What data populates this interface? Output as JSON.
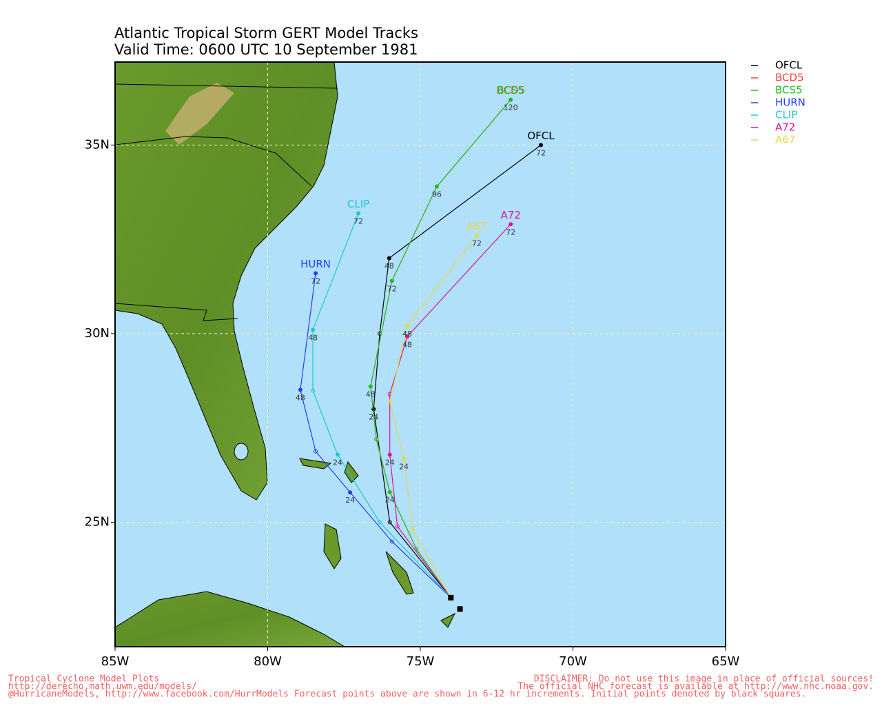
{
  "chart_data": {
    "type": "track",
    "title": "Atlantic Tropical Storm GERT Model Tracks",
    "subtitle": "Valid Time: 0600 UTC 10 September 1981",
    "xlim": [
      -85,
      -65
    ],
    "ylim": [
      21.7,
      37.2
    ],
    "xticks": [
      {
        "value": -85,
        "label": "85W"
      },
      {
        "value": -80,
        "label": "80W"
      },
      {
        "value": -75,
        "label": "75W"
      },
      {
        "value": -70,
        "label": "70W"
      },
      {
        "value": -65,
        "label": "65W"
      }
    ],
    "yticks": [
      {
        "value": 25,
        "label": "25N"
      },
      {
        "value": 30,
        "label": "30N"
      },
      {
        "value": 35,
        "label": "35N"
      }
    ],
    "grid": true,
    "initial_points": {
      "lon": [
        -73.7,
        -74.0
      ],
      "lat": [
        22.7,
        23.0
      ]
    },
    "series": [
      {
        "name": "OFCL",
        "color": "#000000",
        "lon": [
          -74.0,
          -76.0,
          -76.53,
          -76.33,
          -76.02,
          -71.05
        ],
        "lat": [
          23.0,
          25.0,
          28.0,
          30.0,
          32.0,
          35.0
        ],
        "hours": [
          null,
          null,
          24,
          null,
          48,
          72
        ]
      },
      {
        "name": "BCD5",
        "color": "#ff4040",
        "lon": [
          -74.0,
          -75.13,
          -76.0,
          -76.44,
          -76.63,
          -75.93,
          -74.46,
          -72.04
        ],
        "lat": [
          23.0,
          24.29,
          25.8,
          27.2,
          28.6,
          31.4,
          33.9,
          36.2
        ],
        "hours": [
          null,
          null,
          null,
          null,
          null,
          null,
          null,
          null
        ]
      },
      {
        "name": "BCS5",
        "color": "#20c020",
        "lon": [
          -74.0,
          -75.13,
          -76.0,
          -76.44,
          -76.63,
          -75.93,
          -74.46,
          -72.04
        ],
        "lat": [
          23.0,
          24.29,
          25.8,
          27.2,
          28.6,
          31.4,
          33.9,
          36.2
        ],
        "hours": [
          null,
          null,
          24,
          null,
          48,
          72,
          96,
          120
        ]
      },
      {
        "name": "HURN",
        "color": "#2040ff",
        "lon": [
          -74.0,
          -75.93,
          -77.3,
          -78.43,
          -78.93,
          -78.43
        ],
        "lat": [
          23.0,
          24.49,
          25.79,
          26.88,
          28.51,
          31.6
        ],
        "hours": [
          null,
          null,
          24,
          null,
          48,
          72
        ]
      },
      {
        "name": "CLIP",
        "color": "#20c8c8",
        "lon": [
          -74.0,
          -76.33,
          -77.71,
          -78.52,
          -78.52,
          -77.03
        ],
        "lat": [
          23.0,
          25.0,
          26.79,
          28.49,
          30.1,
          33.19
        ],
        "hours": [
          null,
          null,
          24,
          null,
          48,
          72
        ]
      },
      {
        "name": "A72",
        "color": "#e0109a",
        "lon": [
          -74.0,
          -75.75,
          -76.0,
          -76.0,
          -75.43,
          -72.04
        ],
        "lat": [
          23.0,
          24.89,
          26.79,
          28.4,
          29.92,
          32.9
        ],
        "hours": [
          null,
          null,
          24,
          null,
          48,
          72
        ]
      },
      {
        "name": "A67",
        "color": "#e8d840",
        "lon": [
          -74.0,
          -75.25,
          -75.54,
          -76.0,
          -75.43,
          -73.15
        ],
        "lat": [
          23.0,
          24.8,
          26.68,
          28.2,
          30.2,
          32.6
        ],
        "hours": [
          null,
          null,
          24,
          null,
          48,
          72
        ]
      }
    ],
    "footer_left": [
      "Tropical Cyclone Model Plots",
      "http://derecho.math.uwm.edu/models/",
      "@HurricaneModels, http://www.facebook.com/HurrModels  Forecast points above are shown in 6-12 hr increments. Initial points denoted by black squares."
    ],
    "footer_right": [
      "DISCLAIMER: Do not use this image in place of official sources!",
      "The official NHC forecast is available at http://www.nhc.noaa.gov."
    ]
  }
}
